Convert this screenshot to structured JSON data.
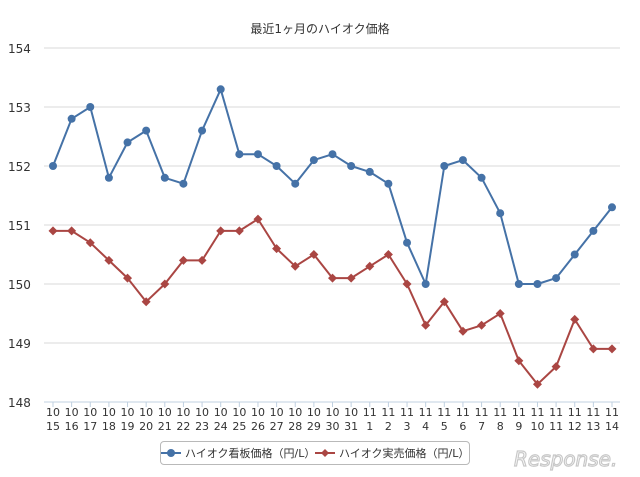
{
  "chart_data": {
    "type": "line",
    "title": "最近1ヶ月のハイオク価格",
    "xlabel": "",
    "ylabel": "",
    "ylim": [
      148,
      154
    ],
    "yticks": [
      "148",
      "149",
      "150",
      "151",
      "152",
      "153",
      "154"
    ],
    "grid": true,
    "legend_position": "bottom",
    "categories": [
      [
        "10",
        "15"
      ],
      [
        "10",
        "16"
      ],
      [
        "10",
        "17"
      ],
      [
        "10",
        "18"
      ],
      [
        "10",
        "19"
      ],
      [
        "10",
        "20"
      ],
      [
        "10",
        "21"
      ],
      [
        "10",
        "22"
      ],
      [
        "10",
        "23"
      ],
      [
        "10",
        "24"
      ],
      [
        "10",
        "25"
      ],
      [
        "10",
        "26"
      ],
      [
        "10",
        "27"
      ],
      [
        "10",
        "28"
      ],
      [
        "10",
        "29"
      ],
      [
        "10",
        "30"
      ],
      [
        "10",
        "31"
      ],
      [
        "11",
        "1"
      ],
      [
        "11",
        "2"
      ],
      [
        "11",
        "3"
      ],
      [
        "11",
        "4"
      ],
      [
        "11",
        "5"
      ],
      [
        "11",
        "6"
      ],
      [
        "11",
        "7"
      ],
      [
        "11",
        "8"
      ],
      [
        "11",
        "9"
      ],
      [
        "11",
        "10"
      ],
      [
        "11",
        "11"
      ],
      [
        "11",
        "12"
      ],
      [
        "11",
        "13"
      ],
      [
        "11",
        "14"
      ]
    ],
    "series": [
      {
        "name": "ハイオク看板価格（円/L）",
        "color": "#4572a7",
        "marker": "circle",
        "values": [
          152.0,
          152.8,
          153.0,
          151.8,
          152.4,
          152.6,
          151.8,
          151.7,
          152.6,
          153.3,
          152.2,
          152.2,
          152.0,
          151.7,
          152.1,
          152.2,
          152.0,
          151.9,
          151.7,
          150.7,
          150.0,
          152.0,
          152.1,
          151.8,
          151.2,
          150.0,
          150.0,
          150.1,
          150.5,
          150.9,
          151.3
        ]
      },
      {
        "name": "ハイオク実売価格（円/L）",
        "color": "#aa4643",
        "marker": "diamond",
        "values": [
          150.9,
          150.9,
          150.7,
          150.4,
          150.1,
          149.7,
          150.0,
          150.4,
          150.4,
          150.9,
          150.9,
          151.1,
          150.6,
          150.3,
          150.5,
          150.1,
          150.1,
          150.3,
          150.5,
          150.0,
          149.3,
          149.7,
          149.2,
          149.3,
          149.5,
          148.7,
          148.3,
          148.6,
          149.4,
          148.9,
          148.9
        ]
      }
    ]
  },
  "watermark": "Response."
}
